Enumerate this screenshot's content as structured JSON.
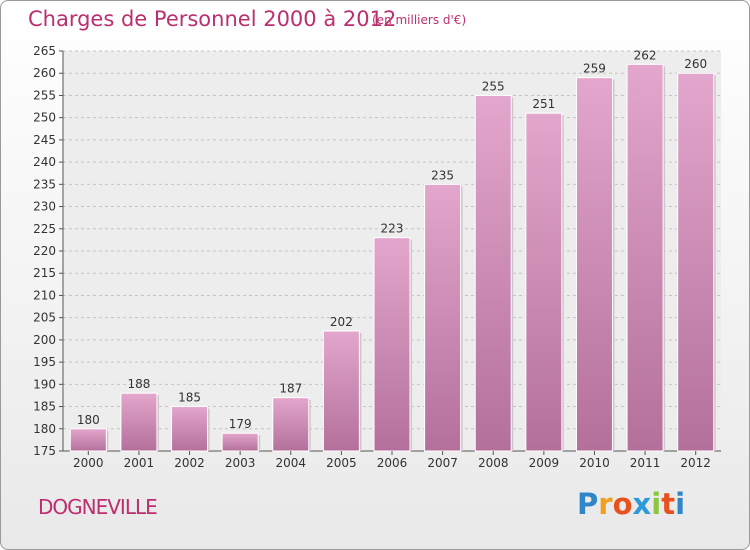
{
  "title": "Charges de Personnel 2000 à 2012",
  "subtitle": "(en milliers d'€)",
  "commune": "DOGNEVILLE",
  "logo": {
    "letters": [
      "P",
      "r",
      "o",
      "x",
      "i",
      "t",
      "i"
    ],
    "colors": [
      "#2f86c8",
      "#f0a020",
      "#e8501e",
      "#2e9ad8",
      "#8cc63f",
      "#e8501e",
      "#2f86c8"
    ]
  },
  "colors": {
    "accent": "#bb2f6f",
    "bar_top": "#e3a6cc",
    "bar_bottom": "#b3709b"
  },
  "chart_data": {
    "type": "bar",
    "title": "Charges de Personnel 2000 à 2012",
    "subtitle": "(en milliers d'€)",
    "xlabel": "",
    "ylabel": "",
    "categories": [
      "2000",
      "2001",
      "2002",
      "2003",
      "2004",
      "2005",
      "2006",
      "2007",
      "2008",
      "2009",
      "2010",
      "2011",
      "2012"
    ],
    "values": [
      180,
      188,
      185,
      179,
      187,
      202,
      223,
      235,
      255,
      251,
      259,
      262,
      260
    ],
    "ylim": [
      175,
      265
    ],
    "yticks": [
      175,
      180,
      185,
      190,
      195,
      200,
      205,
      210,
      215,
      220,
      225,
      230,
      235,
      240,
      245,
      250,
      255,
      260,
      265
    ],
    "grid": true,
    "legend": "none"
  }
}
